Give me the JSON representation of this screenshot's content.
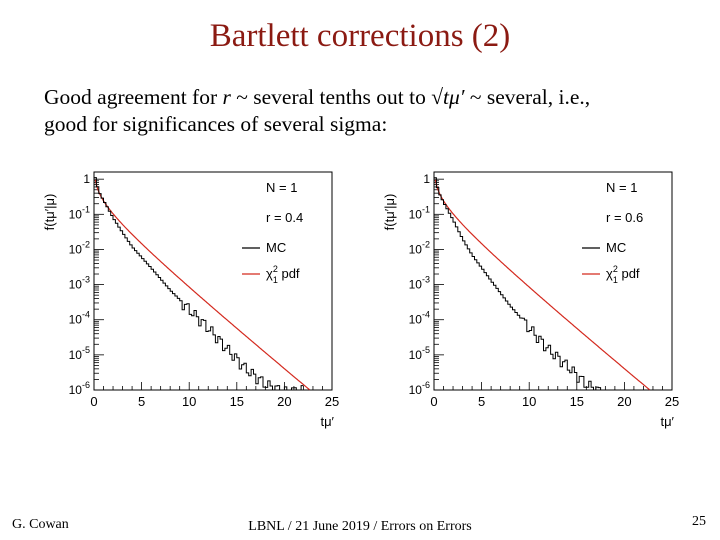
{
  "slide": {
    "title": "Bartlett corrections (2)",
    "line1": {
      "prefix": "Good agreement for ",
      "var_r": "r",
      "middle": " ~ several tenths out to √",
      "var_t": "tμ′",
      "suffix": " ~ several, i.e.,"
    },
    "line2": "good for significances of several sigma:",
    "footer_left": "G. Cowan",
    "footer_center": "LBNL / 21 June 2019 / Errors on Errors",
    "page_number": "25"
  },
  "colors": {
    "title": "#8b1a12",
    "model_line": "#d42a1f",
    "mc_hist": "#000000"
  },
  "chart_data": [
    {
      "type": "line",
      "ylabel": "f(tμ′|μ)",
      "xlabel": "tμ′",
      "yscale": "log",
      "xlim": [
        0,
        25
      ],
      "ylim": [
        1e-06,
        1.6
      ],
      "xticks": [
        "0",
        "5",
        "10",
        "15",
        "20",
        "25"
      ],
      "yticks": [
        {
          "v": 1,
          "label": "1"
        },
        {
          "v": 0.1,
          "label": "10",
          "exp": "-1"
        },
        {
          "v": 0.01,
          "label": "10",
          "exp": "-2"
        },
        {
          "v": 0.001,
          "label": "10",
          "exp": "-3"
        },
        {
          "v": 0.0001,
          "label": "10",
          "exp": "-4"
        },
        {
          "v": 1e-05,
          "label": "10",
          "exp": "-5"
        },
        {
          "v": 1e-06,
          "label": "10",
          "exp": "-6"
        }
      ],
      "legend": {
        "entries": [
          "N = 1",
          "r = 0.4"
        ],
        "mc": "MC",
        "chi2": "χ",
        "chi2_sup": "2",
        "chi2_sub": "1",
        "chi2_tail": " pdf"
      },
      "series": [
        {
          "name": "MC",
          "kind": "histogram",
          "bin_width": 0.25,
          "anchors": [
            [
              0,
              1.5
            ],
            [
              0.5,
              0.45
            ],
            [
              1,
              0.25
            ],
            [
              2,
              0.08
            ],
            [
              3,
              0.03
            ],
            [
              4,
              0.012
            ],
            [
              6,
              0.003
            ],
            [
              8,
              0.0007
            ],
            [
              10,
              0.0002
            ],
            [
              12,
              6e-05
            ],
            [
              14,
              1.5e-05
            ],
            [
              16,
              4e-06
            ],
            [
              18,
              1.5e-06
            ],
            [
              20,
              9e-07
            ],
            [
              22,
              1e-06
            ]
          ]
        },
        {
          "name": "χ² pdf",
          "kind": "curve",
          "function": "chi2_ndf1",
          "x_range": [
            0.05,
            23.0
          ]
        }
      ]
    },
    {
      "type": "line",
      "ylabel": "f(tμ′|μ)",
      "xlabel": "tμ′",
      "yscale": "log",
      "xlim": [
        0,
        25
      ],
      "ylim": [
        1e-06,
        1.6
      ],
      "xticks": [
        "0",
        "5",
        "10",
        "15",
        "20",
        "25"
      ],
      "yticks": [
        {
          "v": 1,
          "label": "1"
        },
        {
          "v": 0.1,
          "label": "10",
          "exp": "-1"
        },
        {
          "v": 0.01,
          "label": "10",
          "exp": "-2"
        },
        {
          "v": 0.001,
          "label": "10",
          "exp": "-3"
        },
        {
          "v": 0.0001,
          "label": "10",
          "exp": "-4"
        },
        {
          "v": 1e-05,
          "label": "10",
          "exp": "-5"
        },
        {
          "v": 1e-06,
          "label": "10",
          "exp": "-6"
        }
      ],
      "legend": {
        "entries": [
          "N = 1",
          "r = 0.6"
        ],
        "mc": "MC",
        "chi2": "χ",
        "chi2_sup": "2",
        "chi2_sub": "1",
        "chi2_tail": " pdf"
      },
      "series": [
        {
          "name": "MC",
          "kind": "histogram",
          "bin_width": 0.25,
          "anchors": [
            [
              0,
              1.5
            ],
            [
              0.5,
              0.42
            ],
            [
              1,
              0.22
            ],
            [
              2,
              0.07
            ],
            [
              3,
              0.02
            ],
            [
              4,
              0.007
            ],
            [
              6,
              0.0013
            ],
            [
              8,
              0.00025
            ],
            [
              10,
              6e-05
            ],
            [
              12,
              1.5e-05
            ],
            [
              14,
              5e-06
            ],
            [
              16,
              1.5e-06
            ],
            [
              17.5,
              9e-07
            ],
            [
              18,
              1e-06
            ]
          ]
        },
        {
          "name": "χ² pdf",
          "kind": "curve",
          "function": "chi2_ndf1",
          "x_range": [
            0.05,
            23.0
          ]
        }
      ]
    }
  ]
}
